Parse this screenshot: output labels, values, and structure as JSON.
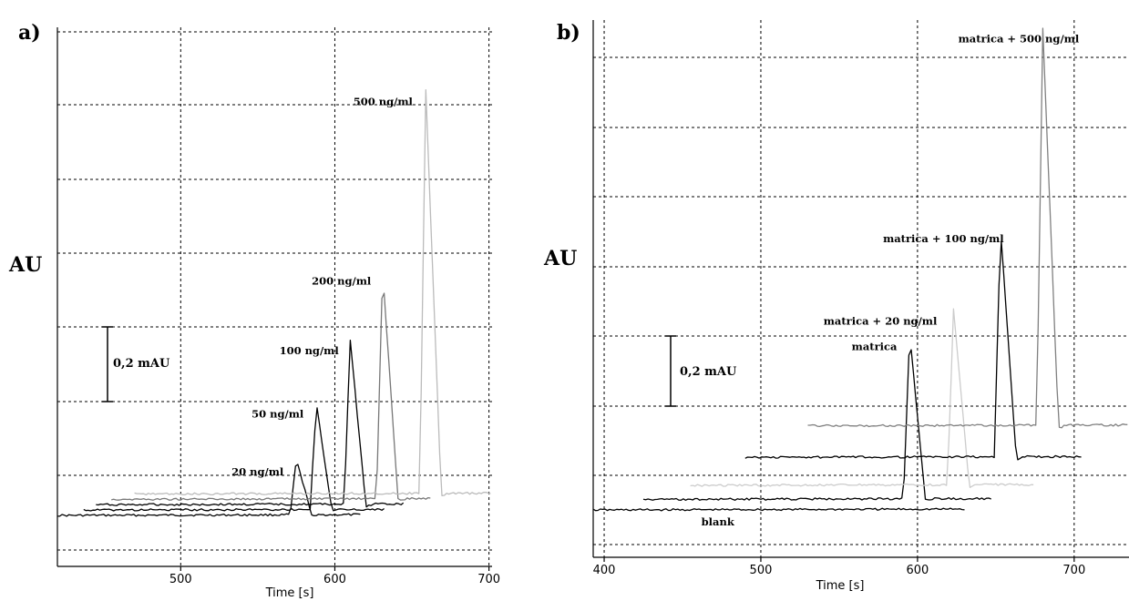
{
  "chart_data": [
    {
      "panel": "a)",
      "type": "line",
      "ylabel": "AU",
      "xlabel": "Time [s]",
      "xticks": [
        500,
        600,
        700
      ],
      "xlim": [
        420,
        702
      ],
      "scale_bar": "0,2 mAU",
      "series": [
        {
          "name": "20 ng/ml",
          "color": "#000000",
          "x_start": 420,
          "x_end": 617,
          "baseline_shift": 0.0,
          "peak_time": 575,
          "peak_height": 0.155,
          "label_text_time": 533
        },
        {
          "name": "50 ng/ml",
          "color": "#000000",
          "x_start": 437,
          "x_end": 633,
          "baseline_shift": 0.015,
          "peak_time": 588,
          "peak_height": 0.298,
          "label_text_time": 546
        },
        {
          "name": "100 ng/ml",
          "color": "#000000",
          "x_start": 445,
          "x_end": 645,
          "baseline_shift": 0.03,
          "peak_time": 610,
          "peak_height": 0.46,
          "label_text_time": 564
        },
        {
          "name": "200 ng/ml",
          "color": "#777777",
          "x_start": 455,
          "x_end": 663,
          "baseline_shift": 0.045,
          "peak_time": 631,
          "peak_height": 0.64,
          "label_text_time": 585
        },
        {
          "name": "500 ng/ml",
          "color": "#bbbbbb",
          "x_start": 470,
          "x_end": 702,
          "baseline_shift": 0.06,
          "peak_time": 659,
          "peak_height": 1.13,
          "label_text_time": 612
        }
      ]
    },
    {
      "panel": "b)",
      "type": "line",
      "ylabel": "AU",
      "xlabel": "Time [s]",
      "xticks": [
        400,
        500,
        600,
        700
      ],
      "xlim": [
        393,
        735
      ],
      "scale_bar": "0,2 mAU",
      "series": [
        {
          "name": "blank",
          "color": "#000000",
          "x_start": 393,
          "x_end": 630,
          "baseline_shift": 0.0,
          "peak_time": null,
          "peak_height": 0,
          "label_text_time": 462
        },
        {
          "name": "matrica",
          "color": "#000000",
          "x_start": 425,
          "x_end": 648,
          "baseline_shift": 0.03,
          "peak_time": 595,
          "peak_height": 0.47,
          "label_text_time": 558
        },
        {
          "name": "matrica + 20 ng/ml",
          "color": "#cccccc",
          "x_start": 455,
          "x_end": 675,
          "baseline_shift": 0.07,
          "peak_time": 623,
          "peak_height": 0.5,
          "label_text_time": 540
        },
        {
          "name": "matrica + 100 ng/ml",
          "color": "#000000",
          "x_start": 490,
          "x_end": 705,
          "baseline_shift": 0.15,
          "peak_time": 653,
          "peak_height": 0.65,
          "label_text_time": 578
        },
        {
          "name": "matrica + 500 ng/ml",
          "color": "#808080",
          "x_start": 530,
          "x_end": 735,
          "baseline_shift": 0.24,
          "peak_time": 680,
          "peak_height": 1.13,
          "label_text_time": 626
        }
      ]
    }
  ]
}
